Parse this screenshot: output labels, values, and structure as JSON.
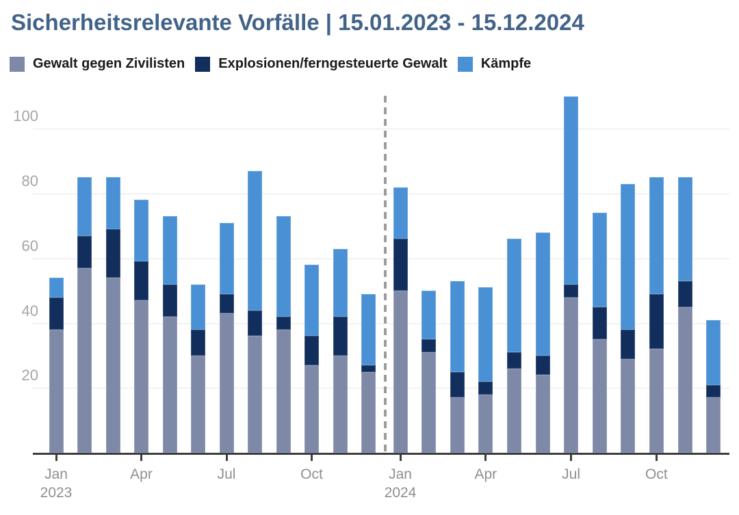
{
  "header": {
    "title": "Sicherheitsrelevante Vorfälle | 15.01.2023 - 15.12.2024",
    "title_color": "#426389"
  },
  "legend": [
    {
      "label": "Gewalt gegen Zivilisten",
      "color": "#7d89a6"
    },
    {
      "label": "Explosionen/ferngesteuerte Gewalt",
      "color": "#112e5c"
    },
    {
      "label": "Kämpfe",
      "color": "#4a90d5"
    }
  ],
  "chart_data": {
    "type": "bar",
    "stacked": true,
    "title": "Sicherheitsrelevante Vorfälle | 15.01.2023 - 15.12.2024",
    "xlabel": "",
    "ylabel": "",
    "ylim": [
      0,
      110
    ],
    "y_ticks": [
      20,
      40,
      60,
      80,
      100
    ],
    "grid": true,
    "legend_position": "top",
    "categories": [
      "Jan 2023",
      "Feb 2023",
      "Mar 2023",
      "Apr 2023",
      "May 2023",
      "Jun 2023",
      "Jul 2023",
      "Aug 2023",
      "Sep 2023",
      "Oct 2023",
      "Nov 2023",
      "Dec 2023",
      "Jan 2024",
      "Feb 2024",
      "Mar 2024",
      "Apr 2024",
      "May 2024",
      "Jun 2024",
      "Jul 2024",
      "Aug 2024",
      "Sep 2024",
      "Oct 2024",
      "Nov 2024",
      "Dec 2024"
    ],
    "x_tick_labels": [
      {
        "year": 0,
        "month_index": 0,
        "label": "Jan",
        "sub": "2023"
      },
      {
        "year": 0,
        "month_index": 3,
        "label": "Apr",
        "sub": ""
      },
      {
        "year": 0,
        "month_index": 6,
        "label": "Jul",
        "sub": ""
      },
      {
        "year": 0,
        "month_index": 9,
        "label": "Oct",
        "sub": ""
      },
      {
        "year": 1,
        "month_index": 0,
        "label": "Jan",
        "sub": "2024"
      },
      {
        "year": 1,
        "month_index": 3,
        "label": "Apr",
        "sub": ""
      },
      {
        "year": 1,
        "month_index": 6,
        "label": "Jul",
        "sub": ""
      },
      {
        "year": 1,
        "month_index": 9,
        "label": "Oct",
        "sub": ""
      }
    ],
    "series": [
      {
        "name": "Gewalt gegen Zivilisten",
        "color": "#7d89a6",
        "values": [
          38,
          57,
          54,
          47,
          42,
          30,
          43,
          36,
          38,
          27,
          30,
          25,
          50,
          31,
          17,
          18,
          26,
          24,
          48,
          35,
          29,
          32,
          45,
          17
        ]
      },
      {
        "name": "Explosionen/ferngesteuerte Gewalt",
        "color": "#112e5c",
        "values": [
          10,
          10,
          15,
          12,
          10,
          8,
          6,
          8,
          4,
          9,
          12,
          2,
          16,
          4,
          8,
          4,
          5,
          6,
          4,
          10,
          9,
          17,
          8,
          4
        ]
      },
      {
        "name": "Kämpfe",
        "color": "#4a90d5",
        "values": [
          6,
          18,
          16,
          19,
          21,
          14,
          22,
          43,
          31,
          22,
          21,
          22,
          16,
          15,
          28,
          29,
          35,
          38,
          58,
          29,
          45,
          36,
          32,
          20
        ]
      }
    ],
    "totals": [
      54,
      85,
      85,
      78,
      73,
      52,
      71,
      87,
      73,
      58,
      63,
      49,
      82,
      50,
      53,
      51,
      66,
      68,
      110,
      74,
      83,
      85,
      85,
      41
    ],
    "year_divider_after_index": 11,
    "year_divider_color": "#9c9c9c"
  },
  "style": {
    "gridline_color": "#e7e7e7",
    "axis_color": "#3d3d3d",
    "y_label_color": "#a6a6a6",
    "x_label_color": "#8f8f8f"
  }
}
